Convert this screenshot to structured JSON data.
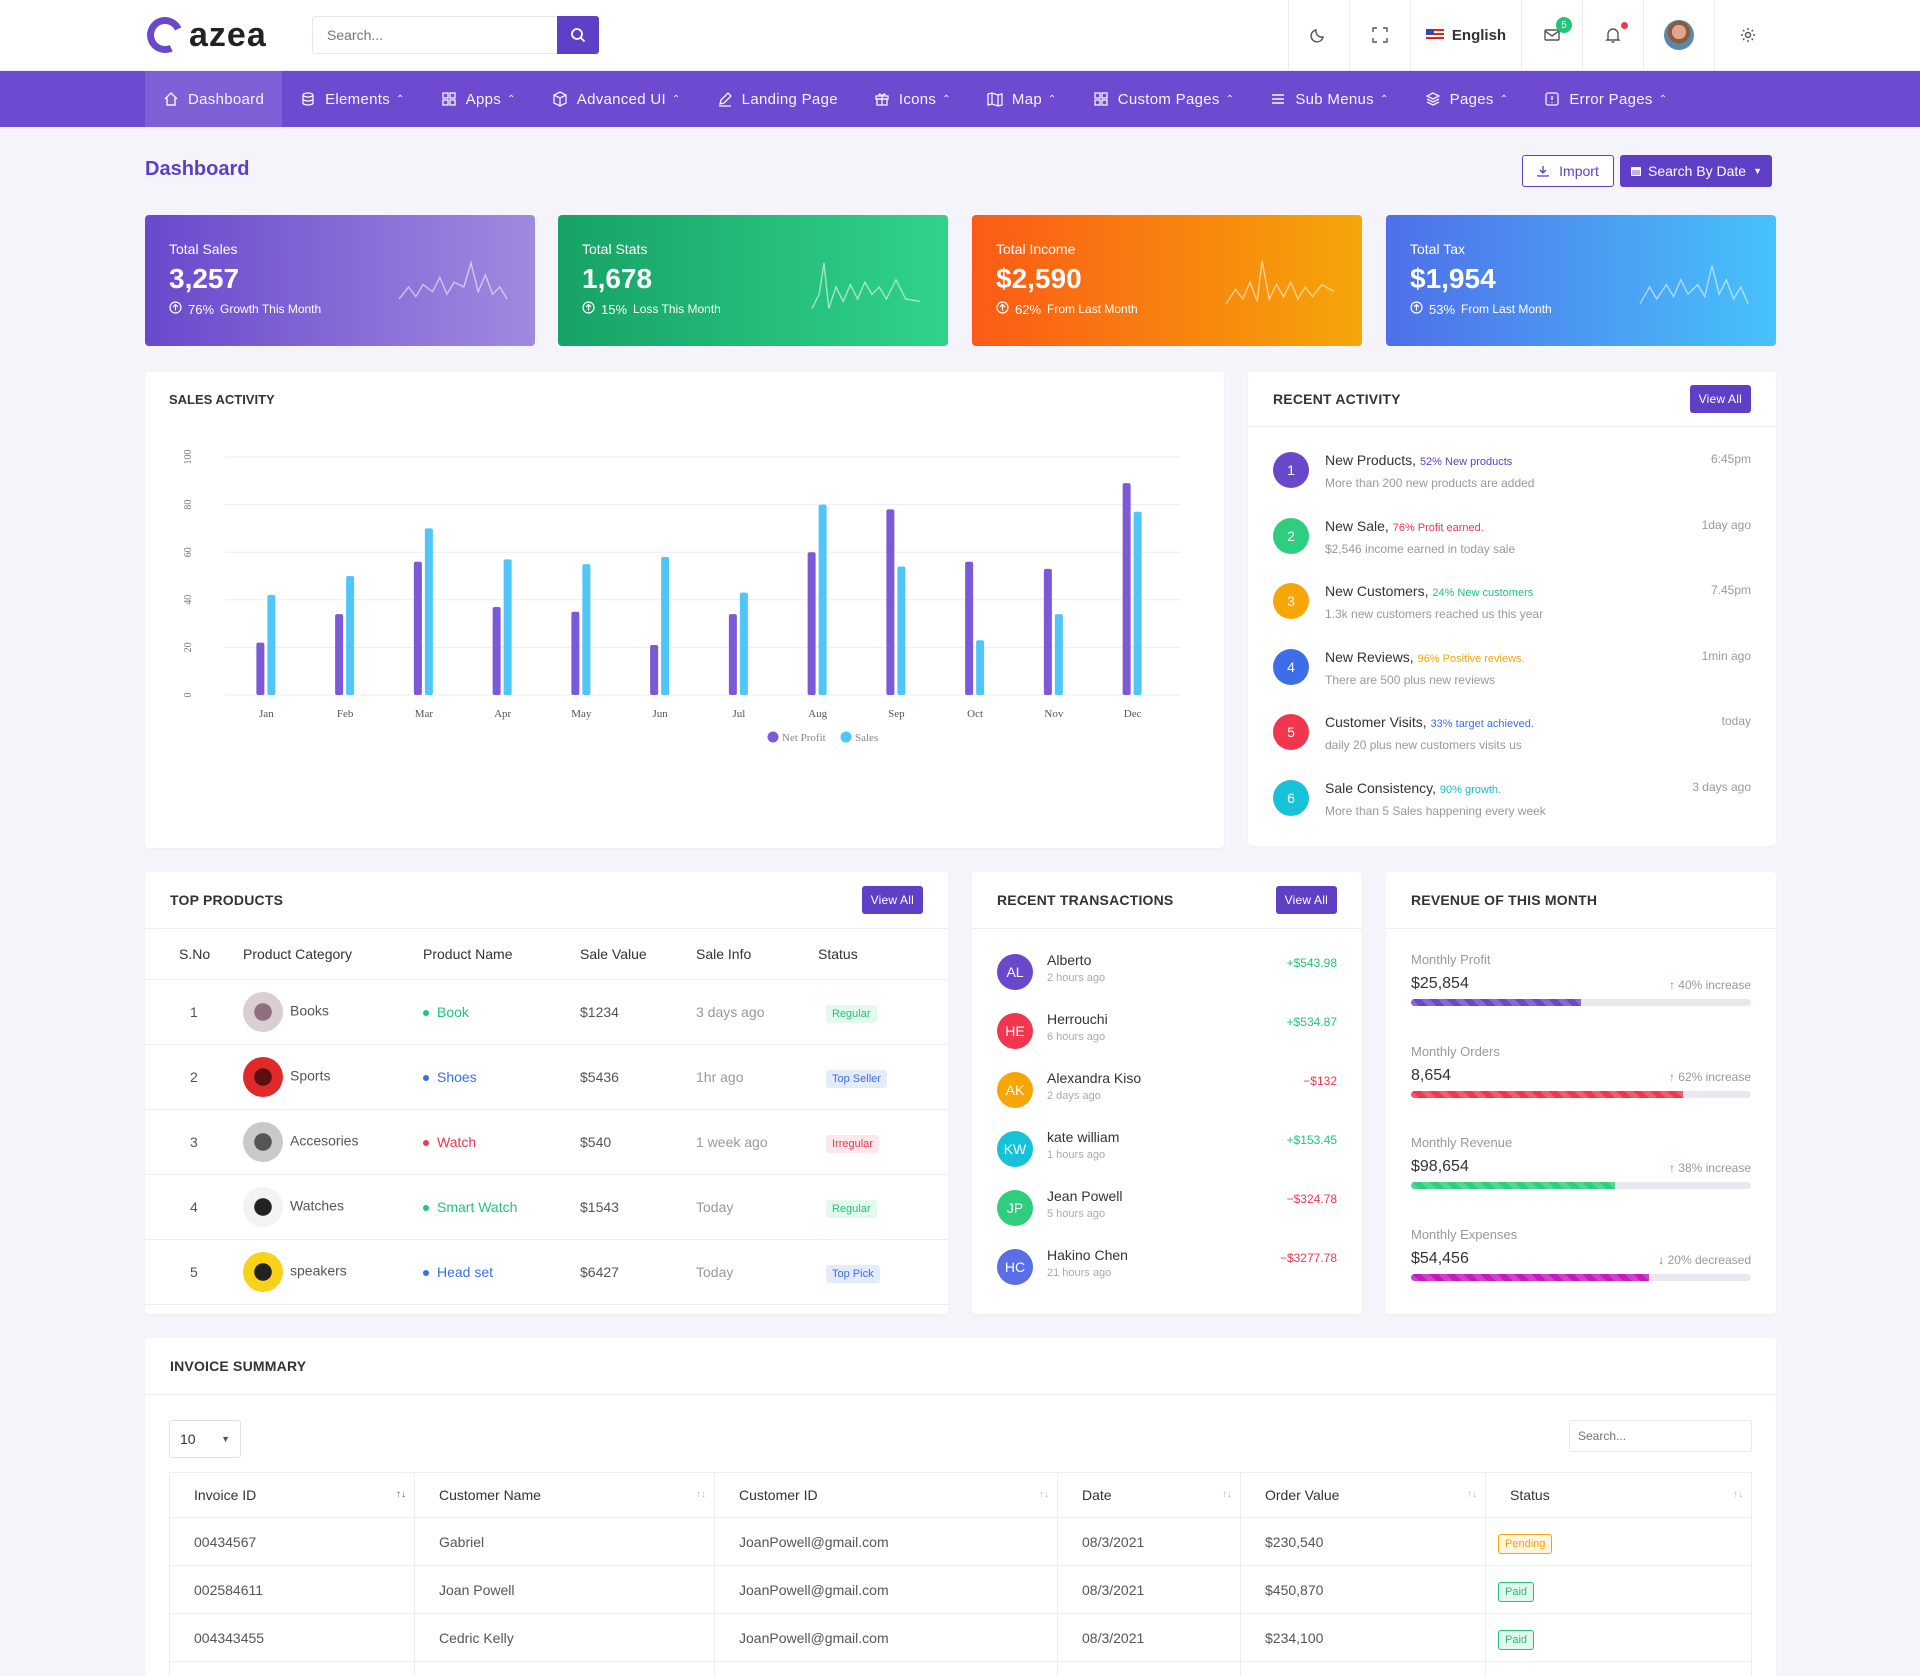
{
  "header": {
    "logo_text": "azea",
    "search_placeholder": "Search...",
    "language": "English",
    "mail_count": "5"
  },
  "nav": [
    {
      "label": "Dashboard",
      "icon": "home-icon",
      "caret": false
    },
    {
      "label": "Elements",
      "icon": "database-icon",
      "caret": true
    },
    {
      "label": "Apps",
      "icon": "grid-icon",
      "caret": true
    },
    {
      "label": "Advanced UI",
      "icon": "box-icon",
      "caret": true
    },
    {
      "label": "Landing Page",
      "icon": "edit-icon",
      "caret": false
    },
    {
      "label": "Icons",
      "icon": "gift-icon",
      "caret": true
    },
    {
      "label": "Map",
      "icon": "map-icon",
      "caret": true
    },
    {
      "label": "Custom Pages",
      "icon": "grid-icon",
      "caret": true
    },
    {
      "label": "Sub Menus",
      "icon": "menu-icon",
      "caret": true
    },
    {
      "label": "Pages",
      "icon": "layers-icon",
      "caret": true
    },
    {
      "label": "Error Pages",
      "icon": "alert-icon",
      "caret": true
    }
  ],
  "page": {
    "title": "Dashboard",
    "import_label": "Import",
    "search_date_label": "Search By Date"
  },
  "stats": [
    {
      "title": "Total Sales",
      "value": "3,257",
      "pct": "76%",
      "note": "Growth This Month",
      "gradient": [
        "#6a48cc",
        "#a08ae0"
      ]
    },
    {
      "title": "Total Stats",
      "value": "1,678",
      "pct": "15%",
      "note": "Loss This Month",
      "gradient": [
        "#17a266",
        "#30d38a"
      ]
    },
    {
      "title": "Total Income",
      "value": "$2,590",
      "pct": "62%",
      "note": "From Last Month",
      "gradient": [
        "#fb5b16",
        "#f5a609"
      ]
    },
    {
      "title": "Total Tax",
      "value": "$1,954",
      "pct": "53%",
      "note": "From Last Month",
      "gradient": [
        "#4f6fe8",
        "#47c2fb"
      ]
    }
  ],
  "sales_activity": {
    "title": "SALES ACTIVITY"
  },
  "chart_data": {
    "type": "bar",
    "categories": [
      "Jan",
      "Feb",
      "Mar",
      "Apr",
      "May",
      "Jun",
      "Jul",
      "Aug",
      "Sep",
      "Oct",
      "Nov",
      "Dec"
    ],
    "series": [
      {
        "name": "Net Profit",
        "color": "#7c59d6",
        "values": [
          22,
          34,
          56,
          37,
          35,
          21,
          34,
          60,
          78,
          56,
          53,
          89
        ]
      },
      {
        "name": "Sales",
        "color": "#4fc6f7",
        "values": [
          42,
          50,
          70,
          57,
          55,
          58,
          43,
          80,
          54,
          23,
          34,
          77
        ]
      }
    ],
    "y_ticks": [
      "0",
      "20",
      "40",
      "60",
      "80",
      "100"
    ],
    "ylim": [
      0,
      100
    ],
    "grid": true,
    "legend": "bottom-center"
  },
  "recent_activity": {
    "title": "RECENT ACTIVITY",
    "view_all": "View All",
    "items": [
      {
        "n": "1",
        "title": "New Products,",
        "tag": "52% New products",
        "tag_color": "#5e3fc6",
        "desc": "More than 200 new products are added",
        "time": "6:45pm",
        "color": "#6a48cc"
      },
      {
        "n": "2",
        "title": "New Sale,",
        "tag": "76% Profit earned.",
        "tag_color": "#f0374f",
        "desc": "$2,546 income earned in today sale",
        "time": "1day ago",
        "color": "#2fce7e"
      },
      {
        "n": "3",
        "title": "New Customers,",
        "tag": "24% New customers",
        "tag_color": "#22c47a",
        "desc": "1.3k new customers reached us this year",
        "time": "7.45pm",
        "color": "#f6a609"
      },
      {
        "n": "4",
        "title": "New Reviews,",
        "tag": "96% Positive reviews.",
        "tag_color": "#f6a609",
        "desc": "There are 500 plus new reviews",
        "time": "1min ago",
        "color": "#3d6ee8"
      },
      {
        "n": "5",
        "title": "Customer Visits,",
        "tag": "33% target achieved.",
        "tag_color": "#3d6ee8",
        "desc": "daily 20 plus new customers visits us",
        "time": "today",
        "color": "#f0374f"
      },
      {
        "n": "6",
        "title": "Sale Consistency,",
        "tag": "90% growth.",
        "tag_color": "#17b8d4",
        "desc": "More than 5 Sales happening every week",
        "time": "3 days ago",
        "color": "#17c2d9"
      }
    ]
  },
  "top_products": {
    "title": "TOP PRODUCTS",
    "view_all": "View All",
    "headers": [
      "S.No",
      "Product Category",
      "Product Name",
      "Sale Value",
      "Sale Info",
      "Status"
    ],
    "rows": [
      {
        "no": "1",
        "category": "Books",
        "name": "Book",
        "name_color": "#22c47a",
        "value": "$1234",
        "info": "3 days ago",
        "status": "Regular",
        "status_bg": "#e3f8ee",
        "status_fg": "#22c47a",
        "img": [
          "#d9ced3",
          "#8d6f7d"
        ]
      },
      {
        "no": "2",
        "category": "Sports",
        "name": "Shoes",
        "name_color": "#3d6ee8",
        "value": "$5436",
        "info": "1hr ago",
        "status": "Top Seller",
        "status_bg": "#e3ebfc",
        "status_fg": "#3d6ee8",
        "img": [
          "#e02a2a",
          "#5a0e0e"
        ]
      },
      {
        "no": "3",
        "category": "Accesories",
        "name": "Watch",
        "name_color": "#f0374f",
        "value": "$540",
        "info": "1 week ago",
        "status": "Irregular",
        "status_bg": "#fde7ea",
        "status_fg": "#f0374f",
        "img": [
          "#c9c9c9",
          "#555555"
        ]
      },
      {
        "no": "4",
        "category": "Watches",
        "name": "Smart Watch",
        "name_color": "#22c47a",
        "value": "$1543",
        "info": "Today",
        "status": "Regular",
        "status_bg": "#e3f8ee",
        "status_fg": "#22c47a",
        "img": [
          "#f3f3f3",
          "#222222"
        ]
      },
      {
        "no": "5",
        "category": "speakers",
        "name": "Head set",
        "name_color": "#3d6ee8",
        "value": "$6427",
        "info": "Today",
        "status": "Top Pick",
        "status_bg": "#e3ebfc",
        "status_fg": "#3d6ee8",
        "img": [
          "#f8d11a",
          "#222222"
        ]
      }
    ]
  },
  "transactions": {
    "title": "RECENT TRANSACTIONS",
    "view_all": "View All",
    "items": [
      {
        "initials": "AL",
        "name": "Alberto",
        "time": "2 hours ago",
        "amount": "+$543.98",
        "amount_color": "#22c47a",
        "color": "#6a48cc"
      },
      {
        "initials": "HE",
        "name": "Herrouchi",
        "time": "6 hours ago",
        "amount": "+$534.87",
        "amount_color": "#22c47a",
        "color": "#f0374f"
      },
      {
        "initials": "AK",
        "name": "Alexandra Kiso",
        "time": "2 days ago",
        "amount": "−$132",
        "amount_color": "#f0374f",
        "color": "#f6a609"
      },
      {
        "initials": "KW",
        "name": "kate william",
        "time": "1 hours ago",
        "amount": "+$153.45",
        "amount_color": "#22c47a",
        "color": "#17c2d9"
      },
      {
        "initials": "JP",
        "name": "Jean Powell",
        "time": "5 hours ago",
        "amount": "−$324.78",
        "amount_color": "#f0374f",
        "color": "#2fce7e"
      },
      {
        "initials": "HC",
        "name": "Hakino Chen",
        "time": "21 hours ago",
        "amount": "−$3277.78",
        "amount_color": "#f0374f",
        "color": "#5a6ee8"
      }
    ]
  },
  "revenue": {
    "title": "REVENUE OF THIS MONTH",
    "items": [
      {
        "label": "Monthly Profit",
        "value": "$25,854",
        "change": "40% increase",
        "dir": "up",
        "progress": 0.5,
        "color": "#6a48cc"
      },
      {
        "label": "Monthly Orders",
        "value": "8,654",
        "change": "62% increase",
        "dir": "up",
        "progress": 0.8,
        "color": "#f0374f"
      },
      {
        "label": "Monthly Revenue",
        "value": "$98,654",
        "change": "38% increase",
        "dir": "up",
        "progress": 0.6,
        "color": "#2fce7e"
      },
      {
        "label": "Monthly Expenses",
        "value": "$54,456",
        "change": "20% decreased",
        "dir": "down",
        "progress": 0.7,
        "color": "#c419c4"
      }
    ]
  },
  "invoice": {
    "title": "INVOICE SUMMARY",
    "page_size": "10",
    "search_placeholder": "Search...",
    "headers": [
      "Invoice ID",
      "Customer Name",
      "Customer ID",
      "Date",
      "Order Value",
      "Status"
    ],
    "rows": [
      {
        "id": "00434567",
        "name": "Gabriel",
        "cid": "JoanPowell@gmail.com",
        "date": "08/3/2021",
        "value": "$230,540",
        "status": "Pending",
        "bg": "#fff5e0",
        "fg": "#f6a609"
      },
      {
        "id": "002584611",
        "name": "Joan Powell",
        "cid": "JoanPowell@gmail.com",
        "date": "08/3/2021",
        "value": "$450,870",
        "status": "Paid",
        "bg": "#e3f8ee",
        "fg": "#22c47a"
      },
      {
        "id": "004343455",
        "name": "Cedric Kelly",
        "cid": "JoanPowell@gmail.com",
        "date": "08/3/2021",
        "value": "$234,100",
        "status": "Paid",
        "bg": "#e3f8ee",
        "fg": "#22c47a"
      }
    ]
  }
}
